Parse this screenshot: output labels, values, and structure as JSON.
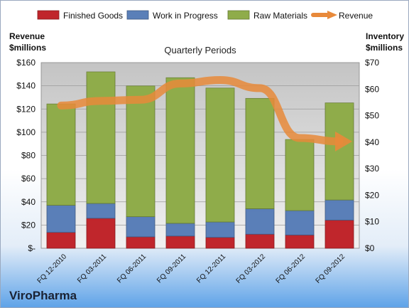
{
  "chart_data": {
    "type": "bar",
    "subtitle": "Quarterly Periods",
    "company": "ViroPharma",
    "left_axis": {
      "label_line1": "Revenue",
      "label_line2": "$millions",
      "ylim": [
        0,
        160
      ],
      "ticks": [
        "$-",
        "$20",
        "$40",
        "$60",
        "$80",
        "$100",
        "$120",
        "$140",
        "$160"
      ]
    },
    "right_axis": {
      "label_line1": "Inventory",
      "label_line2": "$millions",
      "ylim": [
        0,
        70
      ],
      "ticks": [
        "$0",
        "$10",
        "$20",
        "$30",
        "$40",
        "$50",
        "$60",
        "$70"
      ]
    },
    "categories": [
      "FQ 12-2010",
      "FQ 03-2011",
      "FQ 06-2011",
      "FQ 09-2011",
      "FQ 12-2011",
      "FQ 03-2012",
      "FQ 06-2012",
      "FQ 09-2012"
    ],
    "legend_position": "top",
    "grid": true,
    "stacked_series": [
      {
        "name": "Finished Goods",
        "axis": "right",
        "color": "#c0262c",
        "values": [
          6,
          11.3,
          4.3,
          4.6,
          4.1,
          5.3,
          5,
          10.6
        ]
      },
      {
        "name": "Work in Progress",
        "axis": "right",
        "color": "#5a7fb8",
        "values": [
          10.2,
          5.6,
          7.6,
          4.8,
          5.8,
          9.6,
          9.2,
          7.6
        ]
      },
      {
        "name": "Raw Materials",
        "axis": "right",
        "color": "#8fac4a",
        "values": [
          38.2,
          49.6,
          49.3,
          54.9,
          50.5,
          41.6,
          26.8,
          36.6
        ]
      }
    ],
    "line_series": {
      "name": "Revenue",
      "axis": "left",
      "color": "#e8893a",
      "values": [
        123,
        127,
        128,
        142,
        145,
        138,
        95,
        92
      ]
    }
  }
}
